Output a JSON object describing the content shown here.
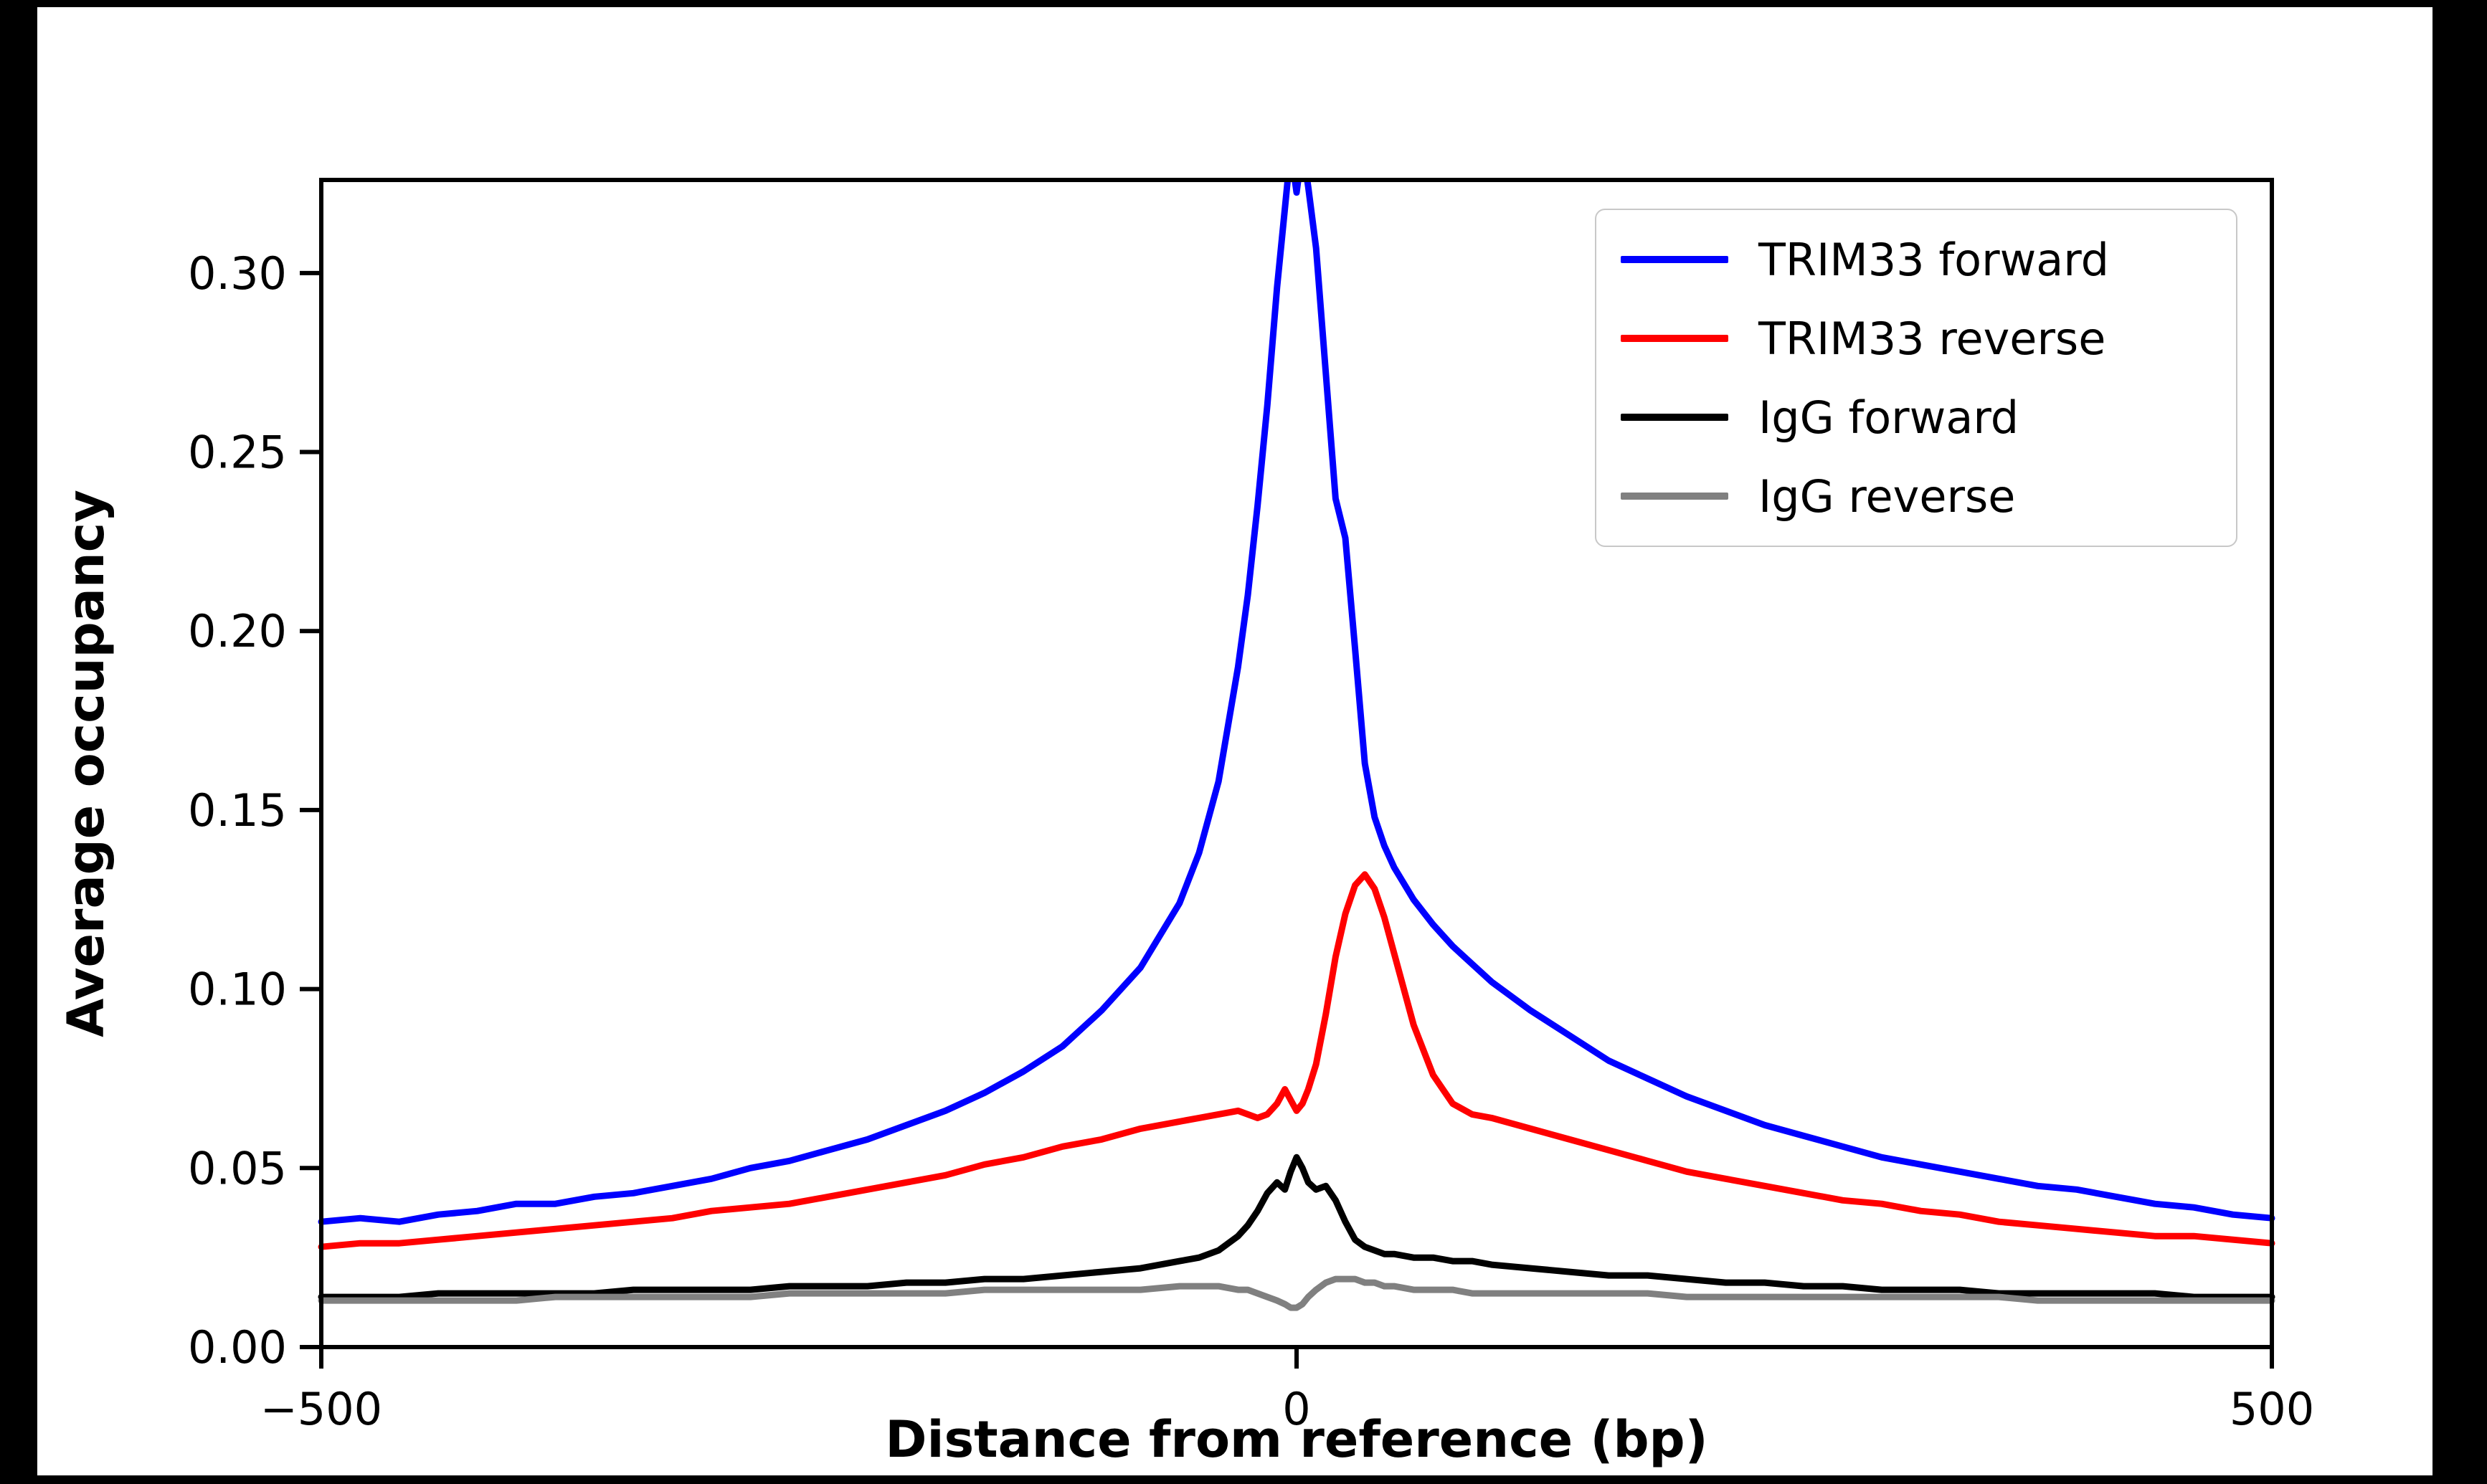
{
  "colors": {
    "page_background": "#000000",
    "figure_background": "#ffffff",
    "axes_color": "#000000",
    "legend_border": "#c8c8c8"
  },
  "chart_data": {
    "type": "line",
    "title": "",
    "xlabel": "Distance from reference (bp)",
    "ylabel": "Average occupancy",
    "xlim": [
      -500,
      500
    ],
    "ylim": [
      0,
      0.326
    ],
    "grid": false,
    "legend_position": "upper right",
    "xticks": {
      "values": [
        -500,
        0,
        500
      ],
      "labels": [
        "−500",
        "0",
        "500"
      ]
    },
    "yticks": {
      "values": [
        0,
        0.05,
        0.1,
        0.15,
        0.2,
        0.25,
        0.3
      ],
      "labels": [
        "0.00",
        "0.05",
        "0.10",
        "0.15",
        "0.20",
        "0.25",
        "0.30"
      ]
    },
    "x": [
      -500,
      -480,
      -460,
      -440,
      -420,
      -400,
      -380,
      -360,
      -340,
      -320,
      -300,
      -280,
      -260,
      -240,
      -220,
      -200,
      -180,
      -160,
      -140,
      -120,
      -100,
      -80,
      -60,
      -50,
      -40,
      -30,
      -25,
      -20,
      -15,
      -10,
      -6,
      -3,
      0,
      3,
      6,
      10,
      15,
      20,
      25,
      30,
      35,
      40,
      45,
      50,
      60,
      70,
      80,
      90,
      100,
      120,
      140,
      160,
      180,
      200,
      220,
      240,
      260,
      280,
      300,
      320,
      340,
      360,
      380,
      400,
      420,
      440,
      460,
      480,
      500
    ],
    "series": [
      {
        "name": "TRIM33 forward",
        "color": "#0000ff",
        "values": [
          0.035,
          0.036,
          0.035,
          0.037,
          0.038,
          0.04,
          0.04,
          0.042,
          0.043,
          0.045,
          0.047,
          0.05,
          0.052,
          0.055,
          0.058,
          0.062,
          0.066,
          0.071,
          0.077,
          0.084,
          0.094,
          0.106,
          0.124,
          0.138,
          0.158,
          0.19,
          0.21,
          0.235,
          0.263,
          0.296,
          0.318,
          0.3345,
          0.3225,
          0.335,
          0.324,
          0.307,
          0.272,
          0.237,
          0.226,
          0.195,
          0.163,
          0.148,
          0.14,
          0.134,
          0.125,
          0.118,
          0.112,
          0.107,
          0.102,
          0.094,
          0.087,
          0.08,
          0.075,
          0.07,
          0.066,
          0.062,
          0.059,
          0.056,
          0.053,
          0.051,
          0.049,
          0.047,
          0.045,
          0.044,
          0.042,
          0.04,
          0.039,
          0.037,
          0.036
        ]
      },
      {
        "name": "TRIM33 reverse",
        "color": "#ff0000",
        "values": [
          0.028,
          0.029,
          0.029,
          0.03,
          0.031,
          0.032,
          0.033,
          0.034,
          0.035,
          0.036,
          0.038,
          0.039,
          0.04,
          0.042,
          0.044,
          0.046,
          0.048,
          0.051,
          0.053,
          0.056,
          0.058,
          0.061,
          0.063,
          0.064,
          0.065,
          0.066,
          0.065,
          0.064,
          0.065,
          0.068,
          0.072,
          0.069,
          0.066,
          0.068,
          0.072,
          0.079,
          0.093,
          0.109,
          0.121,
          0.129,
          0.132,
          0.128,
          0.12,
          0.11,
          0.09,
          0.076,
          0.068,
          0.065,
          0.064,
          0.061,
          0.058,
          0.055,
          0.052,
          0.049,
          0.047,
          0.045,
          0.043,
          0.041,
          0.04,
          0.038,
          0.037,
          0.035,
          0.034,
          0.033,
          0.032,
          0.031,
          0.031,
          0.03,
          0.029
        ]
      },
      {
        "name": "IgG forward",
        "color": "#000000",
        "values": [
          0.014,
          0.014,
          0.014,
          0.015,
          0.015,
          0.015,
          0.015,
          0.015,
          0.016,
          0.016,
          0.016,
          0.016,
          0.017,
          0.017,
          0.017,
          0.018,
          0.018,
          0.019,
          0.019,
          0.02,
          0.021,
          0.022,
          0.024,
          0.025,
          0.027,
          0.031,
          0.034,
          0.038,
          0.043,
          0.046,
          0.044,
          0.049,
          0.053,
          0.05,
          0.046,
          0.044,
          0.045,
          0.041,
          0.035,
          0.03,
          0.028,
          0.027,
          0.026,
          0.026,
          0.025,
          0.025,
          0.024,
          0.024,
          0.023,
          0.022,
          0.021,
          0.02,
          0.02,
          0.019,
          0.018,
          0.018,
          0.017,
          0.017,
          0.016,
          0.016,
          0.016,
          0.015,
          0.015,
          0.015,
          0.015,
          0.015,
          0.014,
          0.014,
          0.014
        ]
      },
      {
        "name": "IgG reverse",
        "color": "#808080",
        "values": [
          0.013,
          0.013,
          0.013,
          0.013,
          0.013,
          0.013,
          0.014,
          0.014,
          0.014,
          0.014,
          0.014,
          0.014,
          0.015,
          0.015,
          0.015,
          0.015,
          0.015,
          0.016,
          0.016,
          0.016,
          0.016,
          0.016,
          0.017,
          0.017,
          0.017,
          0.016,
          0.016,
          0.015,
          0.014,
          0.013,
          0.012,
          0.011,
          0.011,
          0.012,
          0.014,
          0.016,
          0.018,
          0.019,
          0.019,
          0.019,
          0.018,
          0.018,
          0.017,
          0.017,
          0.016,
          0.016,
          0.016,
          0.015,
          0.015,
          0.015,
          0.015,
          0.015,
          0.015,
          0.014,
          0.014,
          0.014,
          0.014,
          0.014,
          0.014,
          0.014,
          0.014,
          0.014,
          0.013,
          0.013,
          0.013,
          0.013,
          0.013,
          0.013,
          0.013
        ]
      }
    ]
  }
}
